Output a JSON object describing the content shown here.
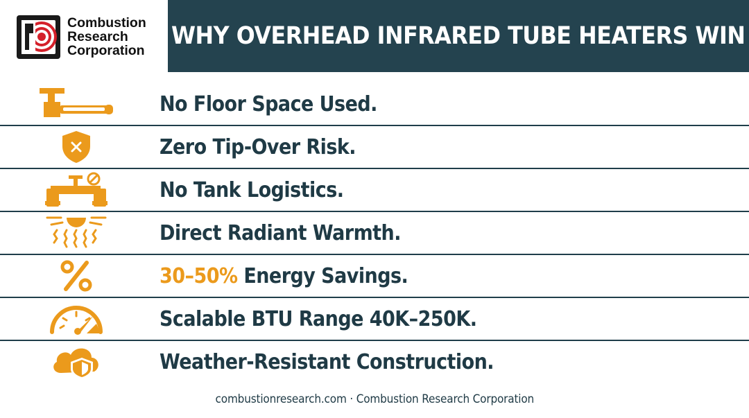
{
  "brand": {
    "line1": "Combustion",
    "line2": "Research",
    "line3": "Corporation",
    "accent_color": "#d4202a"
  },
  "header": {
    "title": "WHY OVERHEAD INFRARED TUBE HEATERS WIN",
    "background": "#24434f"
  },
  "features": [
    {
      "icon": "ceiling-tube-heater-icon",
      "text": "No Floor Space Used."
    },
    {
      "icon": "shield-x-icon",
      "text": "Zero Tip-Over Risk."
    },
    {
      "icon": "pipe-no-tank-icon",
      "text": "No Tank Logistics."
    },
    {
      "icon": "radiant-sun-icon",
      "text": "Direct Radiant Warmth."
    },
    {
      "icon": "percent-icon",
      "highlight": "30–50%",
      "text": " Energy Savings."
    },
    {
      "icon": "gauge-icon",
      "text": "Scalable BTU Range 40K–250K."
    },
    {
      "icon": "cloud-shield-icon",
      "text": "Weather-Resistant Construction."
    }
  ],
  "colors": {
    "icon": "#eb9a1c",
    "text": "#1f3a45",
    "divider": "#1f3e4a"
  },
  "footer": {
    "text": "combustionresearch.com · Combustion Research Corporation"
  }
}
